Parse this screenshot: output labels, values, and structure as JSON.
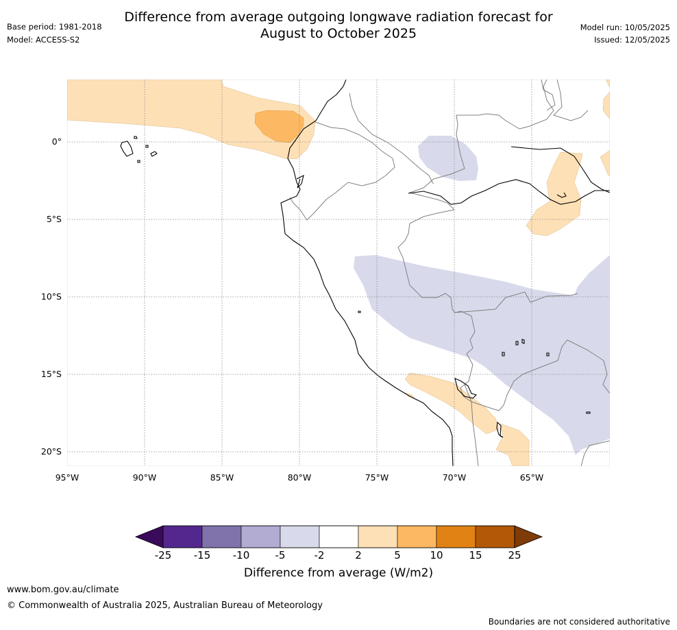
{
  "header": {
    "title_line1": "Difference from average outgoing longwave radiation forecast for",
    "title_line2": "August to October 2025",
    "base_period": "Base period: 1981-2018",
    "model": "Model: ACCESS-S2",
    "model_run": "Model run: 10/05/2025",
    "issued": "Issued: 12/05/2025"
  },
  "map": {
    "lon_range": [
      -95,
      -60
    ],
    "lat_range": [
      -21,
      4
    ],
    "lat_labels": [
      "0°",
      "5°S",
      "10°S",
      "15°S",
      "20°S"
    ],
    "lat_values": [
      0,
      -5,
      -10,
      -15,
      -20
    ],
    "lon_labels": [
      "95°W",
      "90°W",
      "85°W",
      "80°W",
      "75°W",
      "70°W",
      "65°W"
    ],
    "lon_values": [
      -95,
      -90,
      -85,
      -80,
      -75,
      -70,
      -65
    ]
  },
  "colorbar": {
    "title": "Difference from average (W/m2)",
    "tick_labels": [
      "-25",
      "-15",
      "-10",
      "-5",
      "-2",
      "2",
      "5",
      "10",
      "15",
      "25"
    ],
    "colors": {
      "below_min": "#3a0b5a",
      "c1": "#54278f",
      "c2": "#8073ac",
      "c3": "#b2abd2",
      "c4": "#d8daeb",
      "c5": "#ffffff",
      "c6": "#fee0b6",
      "c7": "#fdb863",
      "c8": "#e08214",
      "c9": "#b35806",
      "above_max": "#7f3b08"
    }
  },
  "footer": {
    "url": "www.bom.gov.au/climate",
    "copyright": "© Commonwealth of Australia 2025, Australian Bureau of Meteorology",
    "boundaries_note": "Boundaries are not considered authoritative"
  }
}
